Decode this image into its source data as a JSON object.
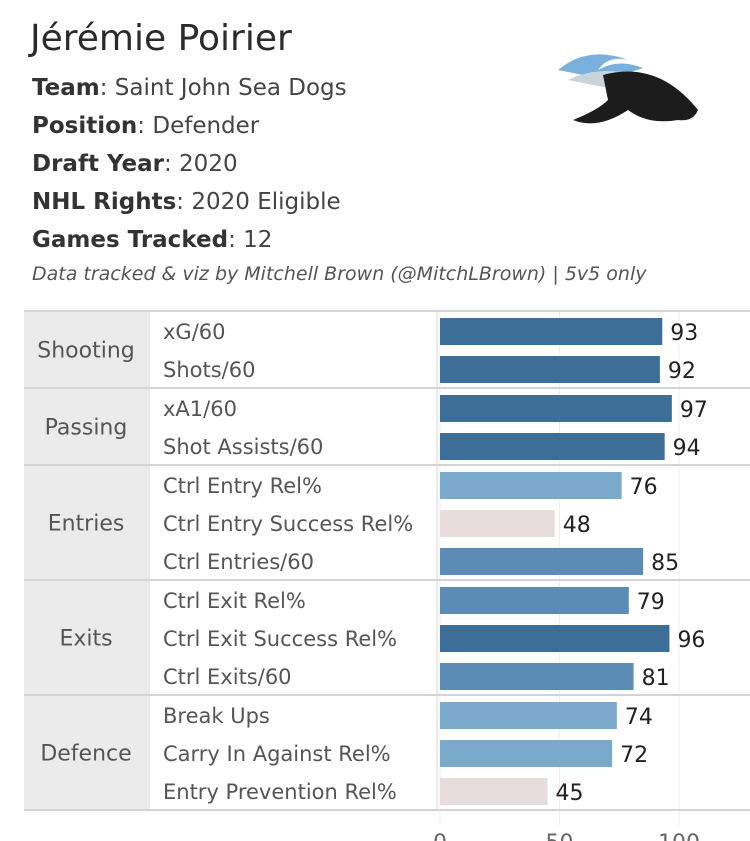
{
  "player": {
    "name": "Jérémie Poirier",
    "fields": [
      {
        "label": "Team",
        "value": "Saint John Sea Dogs"
      },
      {
        "label": "Position",
        "value": "Defender"
      },
      {
        "label": "Draft Year",
        "value": "2020"
      },
      {
        "label": "NHL Rights",
        "value": "2020 Eligible"
      },
      {
        "label": "Games Tracked",
        "value": "12"
      }
    ],
    "credit": "Data tracked & viz by Mitchell Brown (@MitchLBrown) | 5v5 only",
    "logo_text": "Saint John Sea Dogs"
  },
  "colors": {
    "dark": "#3c6e97",
    "mid": "#5c8cb6",
    "light": "#7aa9cb",
    "low": "#e7dddd"
  },
  "chart_data": {
    "type": "bar",
    "orientation": "horizontal",
    "xlim": [
      0,
      100
    ],
    "xticks": [
      "0",
      "50",
      "100"
    ],
    "grid": true,
    "groups": [
      {
        "name": "Shooting",
        "metrics": [
          "xG/60",
          "Shots/60"
        ],
        "values": [
          93,
          92
        ]
      },
      {
        "name": "Passing",
        "metrics": [
          "xA1/60",
          "Shot Assists/60"
        ],
        "values": [
          97,
          94
        ]
      },
      {
        "name": "Entries",
        "metrics": [
          "Ctrl Entry Rel%",
          "Ctrl Entry Success Rel%",
          "Ctrl Entries/60"
        ],
        "values": [
          76,
          48,
          85
        ]
      },
      {
        "name": "Exits",
        "metrics": [
          "Ctrl Exit Rel%",
          "Ctrl Exit Success Rel%",
          "Ctrl Exits/60"
        ],
        "values": [
          79,
          96,
          81
        ]
      },
      {
        "name": "Defence",
        "metrics": [
          "Break Ups",
          "Carry In Against Rel%",
          "Entry Prevention Rel%"
        ],
        "values": [
          74,
          72,
          45
        ]
      }
    ]
  }
}
